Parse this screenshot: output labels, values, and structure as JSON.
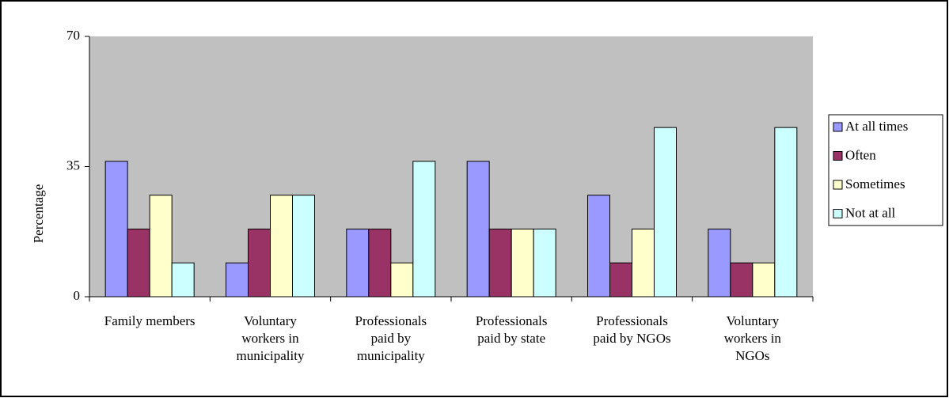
{
  "chart_data": {
    "type": "bar",
    "y_label": "Percentage",
    "categories": [
      "Family members",
      "Voluntary\nworkers in\nmunicipality",
      "Professionals\npaid by\nmunicipality",
      "Professionals\npaid by state",
      "Professionals\npaid by NGOs",
      "Voluntary\nworkers in\nNGOs"
    ],
    "series": [
      {
        "name": "At all times",
        "color": "#9999ff",
        "values": [
          36.4,
          9.1,
          18.2,
          36.4,
          27.3,
          18.2
        ]
      },
      {
        "name": "Often",
        "color": "#993366",
        "values": [
          18.2,
          18.2,
          18.2,
          18.2,
          9.1,
          9.1
        ]
      },
      {
        "name": "Sometimes",
        "color": "#ffffcc",
        "values": [
          27.3,
          27.3,
          9.1,
          18.2,
          18.2,
          9.1
        ]
      },
      {
        "name": "Not at all",
        "color": "#ccffff",
        "values": [
          9.1,
          27.3,
          36.4,
          18.2,
          45.5,
          45.5
        ]
      }
    ],
    "ylim": [
      0,
      70
    ],
    "yticks": [
      0,
      35,
      70
    ],
    "legend": "right"
  }
}
